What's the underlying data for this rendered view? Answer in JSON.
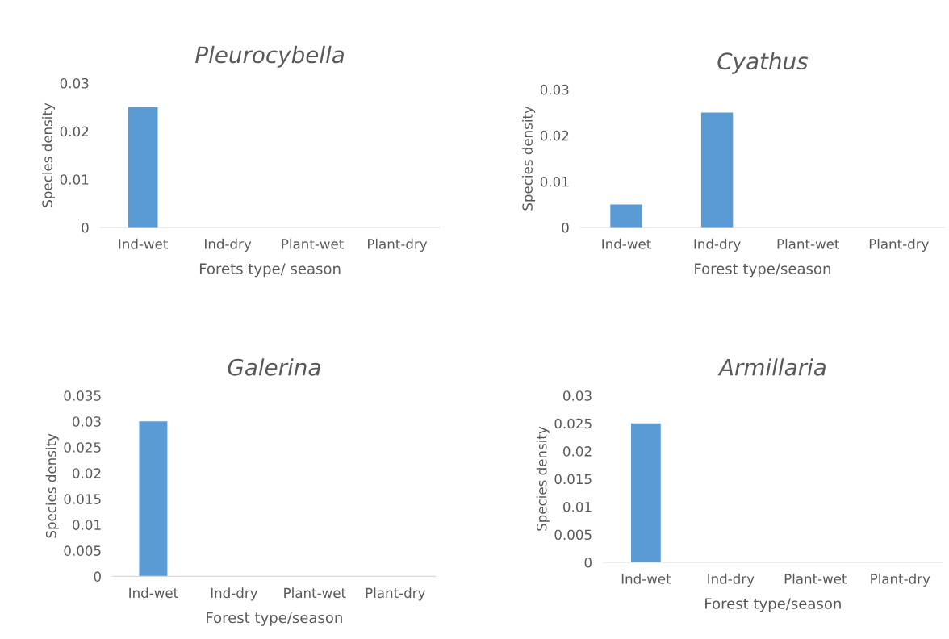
{
  "chart_data": [
    {
      "type": "bar",
      "title": "Pleurocybella",
      "xlabel": "Forets type/ season",
      "ylabel": "Species density",
      "categories": [
        "Ind-wet",
        "Ind-dry",
        "Plant-wet",
        "Plant-dry"
      ],
      "values": [
        0.025,
        0,
        0,
        0
      ],
      "color": "#5b9bd5",
      "ylim": [
        0,
        0.03
      ],
      "yticks": [
        0,
        0.01,
        0.02,
        0.03
      ],
      "grid": false,
      "legend": false
    },
    {
      "type": "bar",
      "title": "Cyathus",
      "xlabel": "Forest type/season",
      "ylabel": "Species density",
      "categories": [
        "Ind-wet",
        "Ind-dry",
        "Plant-wet",
        "Plant-dry"
      ],
      "values": [
        0.005,
        0.025,
        0,
        0
      ],
      "color": "#5b9bd5",
      "ylim": [
        0,
        0.03
      ],
      "yticks": [
        0,
        0.01,
        0.02,
        0.03
      ],
      "grid": false,
      "legend": false
    },
    {
      "type": "bar",
      "title": "Galerina",
      "xlabel": "Forest type/season",
      "ylabel": "Species density",
      "categories": [
        "Ind-wet",
        "Ind-dry",
        "Plant-wet",
        "Plant-dry"
      ],
      "values": [
        0.03,
        0,
        0,
        0
      ],
      "color": "#5b9bd5",
      "ylim": [
        0,
        0.035
      ],
      "yticks": [
        0,
        0.005,
        0.01,
        0.015,
        0.02,
        0.025,
        0.03,
        0.035
      ],
      "grid": false,
      "legend": false
    },
    {
      "type": "bar",
      "title": "Armillaria",
      "xlabel": "Forest type/season",
      "ylabel": "Species density",
      "categories": [
        "Ind-wet",
        "Ind-dry",
        "Plant-wet",
        "Plant-dry"
      ],
      "values": [
        0.025,
        0,
        0,
        0
      ],
      "color": "#5b9bd5",
      "ylim": [
        0,
        0.03
      ],
      "yticks": [
        0,
        0.005,
        0.01,
        0.015,
        0.02,
        0.025,
        0.03
      ],
      "grid": false,
      "legend": false
    }
  ]
}
